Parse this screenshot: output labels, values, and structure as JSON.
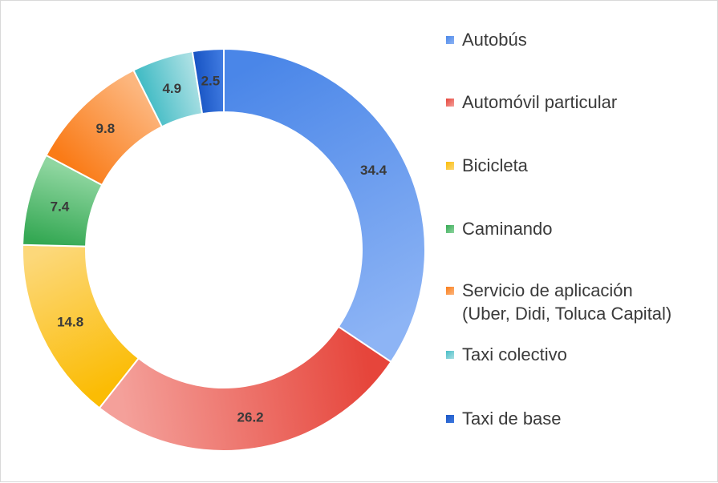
{
  "chart_data": {
    "type": "donut",
    "unit": "",
    "legend_position": "right",
    "series": [
      {
        "name": "Autobús",
        "value": 34.4,
        "label": "34.4",
        "color": "#4a86e8",
        "color_light": "#8db4f5"
      },
      {
        "name": "Automóvil particular",
        "value": 26.2,
        "label": "26.2",
        "color": "#e6453b",
        "color_light": "#f4a09a"
      },
      {
        "name": "Bicicleta",
        "value": 14.8,
        "label": "14.8",
        "color": "#fbbc04",
        "color_light": "#fcd87a"
      },
      {
        "name": "Caminando",
        "value": 7.4,
        "label": "7.4",
        "color": "#34a853",
        "color_light": "#8fd6a0"
      },
      {
        "name": "Servicio de aplicación\n(Uber, Didi, Toluca Capital)",
        "value": 9.8,
        "label": "9.8",
        "color": "#fa7b17",
        "color_light": "#fcb67e"
      },
      {
        "name": "Taxi colectivo",
        "value": 4.9,
        "label": "4.9",
        "color": "#46bdc6",
        "color_light": "#a9dfe3"
      },
      {
        "name": "Taxi de base",
        "value": 2.5,
        "label": "2.5",
        "color": "#1a56c5",
        "color_light": "#3f7ae0"
      }
    ],
    "draw_order": [
      0,
      1,
      2,
      3,
      4,
      5,
      6
    ]
  }
}
